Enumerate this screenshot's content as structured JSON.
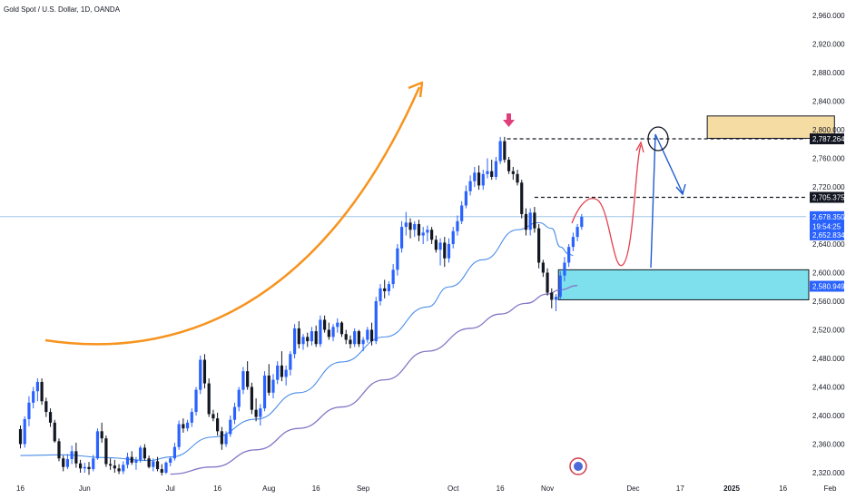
{
  "chart_title": "Gold Spot / U.S. Dollar, 1D, OANDA",
  "colors": {
    "up": "#2962ff",
    "down": "#131722",
    "ma_fast": "#4a8de8",
    "ma_slow": "#8576c7",
    "arrow_orange": "#f7931e",
    "arrow_marker": "#e0407a",
    "zone_support": "#7de0ec",
    "zone_target": "#f5dca3",
    "path_red": "#e5404f",
    "path_blue": "#1f5bd1",
    "last_price_line": "#9ec5e8",
    "badge_dark": "#131722",
    "badge_blue": "#2962ff"
  },
  "chart_data": {
    "type": "candlestick",
    "symbol": "Gold Spot / U.S. Dollar",
    "interval": "1D",
    "source": "OANDA",
    "ylim": [
      2312,
      2980
    ],
    "y_ticks": [
      "2,960.000",
      "2,920.000",
      "2,880.000",
      "2,840.000",
      "2,800.000",
      "2,760.000",
      "2,720.000",
      "2,680.000",
      "2,640.000",
      "2,600.000",
      "2,560.000",
      "2,520.000",
      "2,480.000",
      "2,440.000",
      "2,400.000",
      "2,360.000",
      "2,320.000"
    ],
    "x_ticks": [
      "16",
      "Jun",
      "Jul",
      "16",
      "Aug",
      "16",
      "Sep",
      "Oct",
      "16",
      "Nov",
      "Dec",
      "17",
      "2025",
      "16",
      "Feb"
    ],
    "x_tick_index": [
      0,
      15,
      35,
      46,
      58,
      69,
      80,
      101,
      112,
      123,
      143,
      154,
      166,
      178,
      189
    ],
    "ohlc": [
      [
        2381,
        2386,
        2354,
        2360
      ],
      [
        2360,
        2399,
        2355,
        2395
      ],
      [
        2395,
        2427,
        2385,
        2418
      ],
      [
        2418,
        2440,
        2410,
        2434
      ],
      [
        2434,
        2452,
        2420,
        2447
      ],
      [
        2447,
        2452,
        2415,
        2420
      ],
      [
        2420,
        2425,
        2398,
        2405
      ],
      [
        2405,
        2410,
        2384,
        2390
      ],
      [
        2390,
        2394,
        2362,
        2364
      ],
      [
        2364,
        2368,
        2336,
        2340
      ],
      [
        2340,
        2344,
        2322,
        2328
      ],
      [
        2328,
        2346,
        2325,
        2339
      ],
      [
        2339,
        2358,
        2332,
        2350
      ],
      [
        2350,
        2362,
        2327,
        2333
      ],
      [
        2333,
        2338,
        2320,
        2326
      ],
      [
        2326,
        2334,
        2320,
        2328
      ],
      [
        2328,
        2335,
        2317,
        2325
      ],
      [
        2325,
        2345,
        2322,
        2340
      ],
      [
        2340,
        2382,
        2338,
        2378
      ],
      [
        2378,
        2390,
        2362,
        2368
      ],
      [
        2368,
        2372,
        2328,
        2332
      ],
      [
        2332,
        2340,
        2324,
        2330
      ],
      [
        2330,
        2338,
        2320,
        2326
      ],
      [
        2326,
        2332,
        2318,
        2322
      ],
      [
        2322,
        2336,
        2318,
        2331
      ],
      [
        2331,
        2348,
        2326,
        2342
      ],
      [
        2342,
        2350,
        2331,
        2334
      ],
      [
        2334,
        2342,
        2324,
        2338
      ],
      [
        2338,
        2358,
        2334,
        2355
      ],
      [
        2355,
        2360,
        2337,
        2340
      ],
      [
        2340,
        2344,
        2326,
        2328
      ],
      [
        2328,
        2340,
        2322,
        2336
      ],
      [
        2336,
        2342,
        2322,
        2325
      ],
      [
        2325,
        2332,
        2316,
        2320
      ],
      [
        2320,
        2336,
        2318,
        2334
      ],
      [
        2334,
        2343,
        2329,
        2340
      ],
      [
        2340,
        2362,
        2337,
        2356
      ],
      [
        2356,
        2393,
        2352,
        2388
      ],
      [
        2388,
        2396,
        2376,
        2382
      ],
      [
        2382,
        2394,
        2378,
        2390
      ],
      [
        2390,
        2410,
        2384,
        2405
      ],
      [
        2405,
        2440,
        2400,
        2436
      ],
      [
        2436,
        2484,
        2430,
        2478
      ],
      [
        2478,
        2486,
        2438,
        2445
      ],
      [
        2445,
        2452,
        2398,
        2402
      ],
      [
        2402,
        2408,
        2392,
        2396
      ],
      [
        2396,
        2404,
        2372,
        2378
      ],
      [
        2378,
        2384,
        2352,
        2360
      ],
      [
        2360,
        2378,
        2356,
        2374
      ],
      [
        2374,
        2400,
        2370,
        2394
      ],
      [
        2394,
        2418,
        2388,
        2412
      ],
      [
        2412,
        2440,
        2406,
        2436
      ],
      [
        2436,
        2468,
        2430,
        2462
      ],
      [
        2462,
        2476,
        2436,
        2440
      ],
      [
        2440,
        2446,
        2402,
        2408
      ],
      [
        2408,
        2424,
        2392,
        2398
      ],
      [
        2398,
        2416,
        2386,
        2410
      ],
      [
        2410,
        2462,
        2406,
        2456
      ],
      [
        2456,
        2472,
        2428,
        2432
      ],
      [
        2432,
        2458,
        2424,
        2450
      ],
      [
        2450,
        2476,
        2444,
        2470
      ],
      [
        2470,
        2490,
        2448,
        2454
      ],
      [
        2454,
        2470,
        2442,
        2464
      ],
      [
        2464,
        2490,
        2456,
        2486
      ],
      [
        2486,
        2528,
        2480,
        2522
      ],
      [
        2522,
        2532,
        2494,
        2500
      ],
      [
        2500,
        2514,
        2492,
        2510
      ],
      [
        2510,
        2516,
        2496,
        2504
      ],
      [
        2504,
        2524,
        2498,
        2518
      ],
      [
        2518,
        2526,
        2496,
        2500
      ],
      [
        2500,
        2540,
        2496,
        2534
      ],
      [
        2534,
        2540,
        2516,
        2520
      ],
      [
        2520,
        2530,
        2506,
        2510
      ],
      [
        2510,
        2528,
        2504,
        2524
      ],
      [
        2524,
        2536,
        2516,
        2530
      ],
      [
        2530,
        2532,
        2510,
        2514
      ],
      [
        2514,
        2520,
        2500,
        2506
      ],
      [
        2506,
        2512,
        2494,
        2500
      ],
      [
        2500,
        2522,
        2496,
        2518
      ],
      [
        2518,
        2520,
        2496,
        2500
      ],
      [
        2500,
        2510,
        2490,
        2506
      ],
      [
        2506,
        2524,
        2502,
        2520
      ],
      [
        2520,
        2530,
        2498,
        2504
      ],
      [
        2504,
        2566,
        2500,
        2560
      ],
      [
        2560,
        2584,
        2554,
        2578
      ],
      [
        2578,
        2590,
        2564,
        2574
      ],
      [
        2574,
        2588,
        2568,
        2584
      ],
      [
        2584,
        2612,
        2578,
        2604
      ],
      [
        2604,
        2640,
        2596,
        2634
      ],
      [
        2634,
        2672,
        2628,
        2664
      ],
      [
        2664,
        2685,
        2652,
        2670
      ],
      [
        2670,
        2676,
        2648,
        2660
      ],
      [
        2660,
        2672,
        2650,
        2668
      ],
      [
        2668,
        2674,
        2644,
        2652
      ],
      [
        2652,
        2664,
        2640,
        2656
      ],
      [
        2656,
        2666,
        2644,
        2660
      ],
      [
        2660,
        2664,
        2640,
        2646
      ],
      [
        2646,
        2652,
        2628,
        2632
      ],
      [
        2632,
        2648,
        2610,
        2642
      ],
      [
        2642,
        2650,
        2608,
        2620
      ],
      [
        2620,
        2648,
        2614,
        2640
      ],
      [
        2640,
        2664,
        2634,
        2658
      ],
      [
        2658,
        2680,
        2652,
        2672
      ],
      [
        2672,
        2700,
        2668,
        2694
      ],
      [
        2694,
        2722,
        2690,
        2714
      ],
      [
        2714,
        2736,
        2708,
        2728
      ],
      [
        2728,
        2748,
        2720,
        2740
      ],
      [
        2740,
        2750,
        2716,
        2722
      ],
      [
        2722,
        2744,
        2716,
        2738
      ],
      [
        2738,
        2760,
        2732,
        2742
      ],
      [
        2742,
        2758,
        2730,
        2734
      ],
      [
        2734,
        2762,
        2730,
        2756
      ],
      [
        2756,
        2790,
        2752,
        2784
      ],
      [
        2784,
        2790,
        2754,
        2758
      ],
      [
        2758,
        2762,
        2738,
        2742
      ],
      [
        2742,
        2748,
        2730,
        2738
      ],
      [
        2738,
        2744,
        2722,
        2726
      ],
      [
        2726,
        2730,
        2676,
        2682
      ],
      [
        2682,
        2690,
        2652,
        2660
      ],
      [
        2660,
        2690,
        2652,
        2684
      ],
      [
        2684,
        2692,
        2656,
        2662
      ],
      [
        2662,
        2668,
        2606,
        2614
      ],
      [
        2614,
        2618,
        2594,
        2600
      ],
      [
        2600,
        2606,
        2568,
        2572
      ],
      [
        2572,
        2578,
        2550,
        2562
      ],
      [
        2562,
        2570,
        2546,
        2566
      ],
      [
        2566,
        2602,
        2562,
        2596
      ],
      [
        2596,
        2622,
        2588,
        2614
      ],
      [
        2614,
        2640,
        2608,
        2636
      ],
      [
        2636,
        2656,
        2630,
        2650
      ],
      [
        2650,
        2668,
        2644,
        2664
      ],
      [
        2664,
        2682,
        2660,
        2678
      ]
    ],
    "sma_fast_anchors": [
      [
        0,
        2344
      ],
      [
        10,
        2345
      ],
      [
        20,
        2341
      ],
      [
        30,
        2337
      ],
      [
        35,
        2342
      ],
      [
        45,
        2370
      ],
      [
        55,
        2395
      ],
      [
        65,
        2432
      ],
      [
        75,
        2475
      ],
      [
        85,
        2510
      ],
      [
        95,
        2552
      ],
      [
        100,
        2580
      ],
      [
        108,
        2618
      ],
      [
        116,
        2660
      ],
      [
        121,
        2670
      ],
      [
        124,
        2662
      ],
      [
        126,
        2636
      ],
      [
        128,
        2626
      ],
      [
        129,
        2624
      ]
    ],
    "sma_slow_anchors": [
      [
        35,
        2318
      ],
      [
        45,
        2328
      ],
      [
        55,
        2352
      ],
      [
        65,
        2382
      ],
      [
        75,
        2412
      ],
      [
        85,
        2450
      ],
      [
        95,
        2490
      ],
      [
        105,
        2522
      ],
      [
        112,
        2542
      ],
      [
        118,
        2557
      ],
      [
        123,
        2570
      ],
      [
        126,
        2576
      ],
      [
        130,
        2582
      ]
    ],
    "badges": [
      {
        "label": "2,787.264",
        "value": 2787.264,
        "style": "dark"
      },
      {
        "label": "2,705.375",
        "value": 2705.375,
        "style": "dark"
      },
      {
        "label": "2,678.350",
        "value": 2678.35,
        "style": "blue"
      },
      {
        "label": "19:54:25",
        "value": 2665,
        "style": "blue"
      },
      {
        "label": "2,652.834",
        "value": 2652.834,
        "style": "blue"
      },
      {
        "label": "2,580.949",
        "value": 2580.949,
        "style": "blue"
      }
    ],
    "levels": {
      "resistance": 2787.264,
      "intermediate": 2705.375,
      "last_price": 2678.35
    },
    "zones": [
      {
        "name": "support",
        "x_from": 126,
        "x_to": 184,
        "y_from": 2562,
        "y_to": 2604
      },
      {
        "name": "target",
        "x_from": 162,
        "x_to": 190,
        "y_from": 2788,
        "y_to": 2818
      }
    ]
  }
}
